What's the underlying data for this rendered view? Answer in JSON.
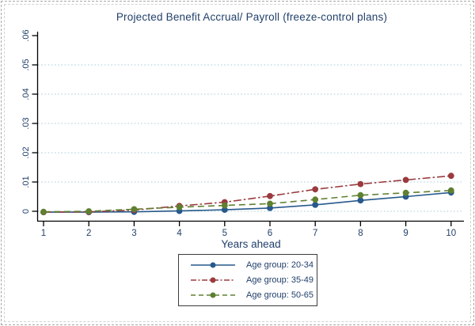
{
  "chart_data": {
    "type": "line",
    "title": "Projected Benefit Accrual/ Payroll (freeze-control plans)",
    "xlabel": "Years ahead",
    "ylabel": "",
    "x": [
      1,
      2,
      3,
      4,
      5,
      6,
      7,
      8,
      9,
      10
    ],
    "x_tick_labels": [
      "1",
      "2",
      "3",
      "4",
      "5",
      "6",
      "7",
      "8",
      "9",
      "10"
    ],
    "y_tick_labels": [
      "0",
      ".01",
      ".02",
      ".03",
      ".04",
      ".05",
      ".06"
    ],
    "y_tick_values": [
      0,
      0.01,
      0.02,
      0.03,
      0.04,
      0.05,
      0.06
    ],
    "y_tick_label_rotation": "vertical",
    "ylim": [
      -0.0032,
      0.063
    ],
    "xlim": [
      0.88,
      10.3
    ],
    "grid": "horizontal-dotted",
    "gridline_top_value": 0.05,
    "legend_position": "bottom-center",
    "series": [
      {
        "name": "Age group: 20-34",
        "color": "#27598c",
        "line_style": "solid",
        "marker": "circle",
        "values": [
          -0.0003,
          -0.0003,
          -0.0002,
          0.0001,
          0.0005,
          0.0011,
          0.0022,
          0.0037,
          0.005,
          0.0064
        ]
      },
      {
        "name": "Age group: 35-49",
        "color": "#9a3b3f",
        "line_style": "dash-dot",
        "marker": "circle",
        "values": [
          -0.0003,
          -0.0002,
          0.0004,
          0.0018,
          0.0031,
          0.0052,
          0.0075,
          0.0093,
          0.0107,
          0.0121
        ]
      },
      {
        "name": "Age group: 50-65",
        "color": "#5f8030",
        "line_style": "dash",
        "marker": "circle",
        "values": [
          -0.0002,
          0.0,
          0.0007,
          0.0014,
          0.002,
          0.0026,
          0.004,
          0.0055,
          0.0063,
          0.0071
        ]
      }
    ],
    "colors": {
      "text": "#22406b",
      "axis": "#000000",
      "gridline": "#a9ccd9",
      "background": "#ffffff",
      "figure_border": "#a8a8a8",
      "legend_border": "#3c3c3c"
    }
  }
}
